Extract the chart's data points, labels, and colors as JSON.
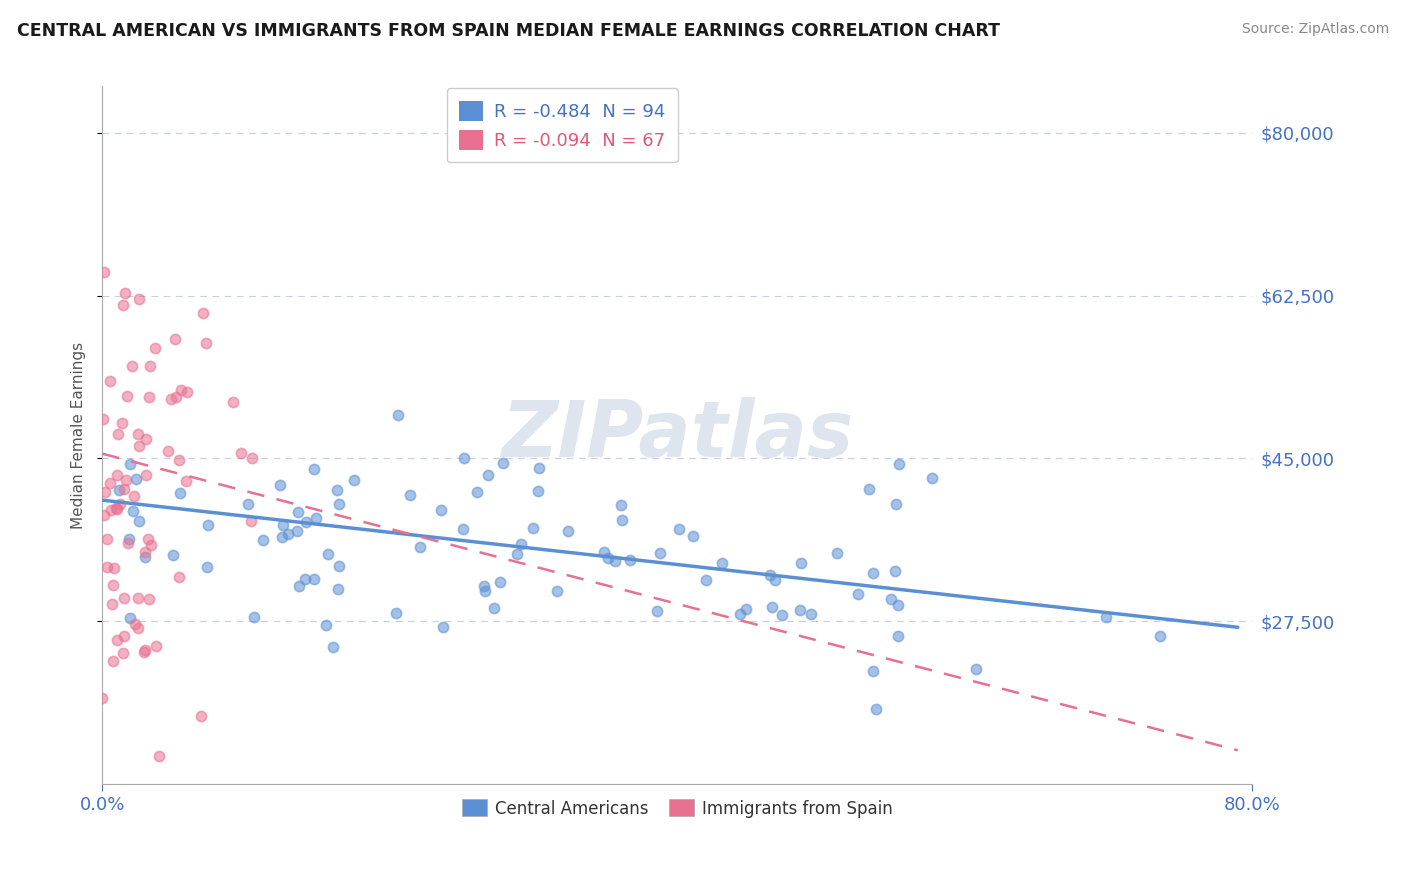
{
  "title": "CENTRAL AMERICAN VS IMMIGRANTS FROM SPAIN MEDIAN FEMALE EARNINGS CORRELATION CHART",
  "source_text": "Source: ZipAtlas.com",
  "watermark": "ZIPatlas",
  "ylabel": "Median Female Earnings",
  "legend_entries": [
    {
      "label": "R = -0.484  N = 94",
      "color": "#4472c4"
    },
    {
      "label": "R = -0.094  N = 67",
      "color": "#e05878"
    }
  ],
  "legend_labels_bottom": [
    "Central Americans",
    "Immigrants from Spain"
  ],
  "y_ticks": [
    27500,
    45000,
    62500,
    80000
  ],
  "y_tick_labels": [
    "$27,500",
    "$45,000",
    "$62,500",
    "$80,000"
  ],
  "xlim": [
    0.0,
    0.8
  ],
  "ylim": [
    10000,
    85000
  ],
  "blue_color": "#5b8fd4",
  "pink_color": "#e87090",
  "axis_color": "#4472c4",
  "grid_color": "#c8d0dc",
  "R_blue": -0.484,
  "N_blue": 94,
  "R_pink": -0.094,
  "N_pink": 67,
  "blue_trend_x0": 0.0,
  "blue_trend_y0": 40500,
  "blue_trend_x1": 0.78,
  "blue_trend_y1": 27000,
  "pink_trend_x0": 0.0,
  "pink_trend_y0": 45500,
  "pink_trend_x1": 0.78,
  "pink_trend_y1": 14000
}
